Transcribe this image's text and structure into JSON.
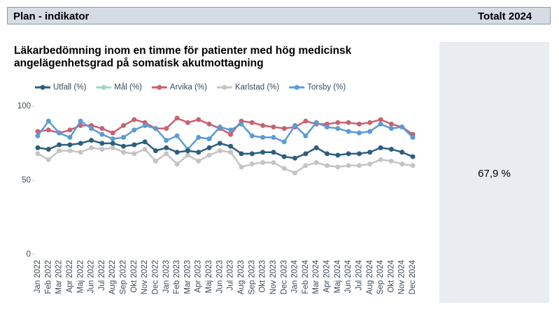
{
  "header": {
    "title": "Plan - indikator",
    "column": "Totalt 2024"
  },
  "total": "67,9 %",
  "chart_data": {
    "type": "line",
    "title": "Läkarbedömning inom en timme för patienter med hög medicinsk angelägenhetsgrad på somatisk akutmottagning",
    "categories": [
      "Jan 2022",
      "Feb 2022",
      "Mar 2022",
      "Apr 2022",
      "Maj 2022",
      "Jun 2022",
      "Jul 2022",
      "Aug 2022",
      "Sep 2022",
      "Okt 2022",
      "Nov 2022",
      "Dec 2022",
      "Jan 2023",
      "Feb 2023",
      "Mar 2023",
      "Apr 2023",
      "Maj 2023",
      "Jun 2023",
      "Jul 2023",
      "Aug 2023",
      "Sep 2023",
      "Okt 2023",
      "Nov 2023",
      "Dec 2023",
      "Jan 2024",
      "Feb 2024",
      "Mar 2024",
      "Apr 2024",
      "Maj 2024",
      "Jun 2024",
      "Jul 2024",
      "Aug 2024",
      "Sep 2024",
      "Okt 2024",
      "Nov 2024",
      "Dec 2024"
    ],
    "series": [
      {
        "name": "Utfall (%)",
        "color": "#2d5e7e",
        "values": [
          72,
          71,
          74,
          74,
          75,
          77,
          75,
          75,
          73,
          74,
          76,
          70,
          72,
          69,
          70,
          69,
          72,
          75,
          73,
          68,
          68,
          69,
          69,
          66,
          65,
          68,
          72,
          68,
          67,
          68,
          68,
          69,
          72,
          71,
          69,
          66
        ]
      },
      {
        "name": "Mål (%)",
        "color": "#9fd6c6",
        "values": [
          null,
          null,
          null,
          null,
          null,
          null,
          null,
          null,
          null,
          null,
          null,
          null,
          null,
          null,
          null,
          null,
          null,
          null,
          null,
          null,
          null,
          null,
          null,
          null,
          null,
          null,
          null,
          null,
          null,
          null,
          null,
          null,
          null,
          null,
          null,
          null
        ]
      },
      {
        "name": "Arvika (%)",
        "color": "#c9616f",
        "values": [
          83,
          84,
          82,
          84,
          87,
          87,
          85,
          82,
          87,
          91,
          89,
          85,
          85,
          92,
          89,
          91,
          88,
          85,
          81,
          90,
          89,
          87,
          86,
          85,
          86,
          90,
          88,
          88,
          89,
          89,
          88,
          89,
          91,
          88,
          86,
          81
        ]
      },
      {
        "name": "Karlstad (%)",
        "color": "#c4c4c4",
        "values": [
          68,
          64,
          70,
          70,
          69,
          72,
          71,
          72,
          69,
          68,
          71,
          63,
          68,
          61,
          67,
          63,
          67,
          70,
          69,
          59,
          61,
          62,
          62,
          58,
          55,
          60,
          62,
          60,
          59,
          60,
          60,
          61,
          64,
          63,
          61,
          60
        ]
      },
      {
        "name": "Torsby (%)",
        "color": "#5b9bd5",
        "values": [
          80,
          90,
          82,
          79,
          90,
          85,
          81,
          78,
          79,
          84,
          87,
          85,
          77,
          80,
          71,
          79,
          78,
          86,
          84,
          88,
          80,
          79,
          79,
          76,
          87,
          80,
          89,
          86,
          85,
          83,
          82,
          83,
          88,
          85,
          86,
          79
        ]
      }
    ],
    "ylim": [
      0,
      100
    ],
    "yticks": [
      0,
      50,
      100
    ],
    "grid": false
  }
}
